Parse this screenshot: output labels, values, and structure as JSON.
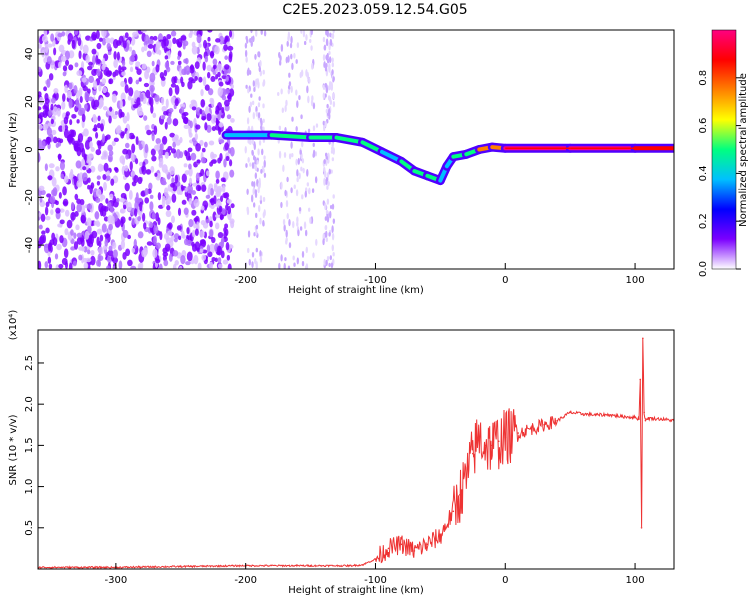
{
  "title": "C2E5.2023.059.12.54.G05",
  "chart_data": [
    {
      "type": "heatmap",
      "xlabel": "Height of straight line (km)",
      "ylabel": "Frequency (Hz)",
      "xlim": [
        -360,
        130
      ],
      "ylim": [
        -50,
        50
      ],
      "xticks": [
        -300,
        -200,
        -100,
        0,
        100
      ],
      "yticks": [
        -40,
        -20,
        0,
        20,
        40
      ],
      "colorbar": {
        "label": "Normalized spectral amplitude",
        "range": [
          0,
          1
        ],
        "ticks": [
          "0.0",
          "0.2",
          "0.4",
          "0.6",
          "0.8"
        ],
        "colors": [
          "#ffffff",
          "#7b00ff",
          "#0000ff",
          "#00c0ff",
          "#00ff80",
          "#ffff00",
          "#ff8000",
          "#ff0000",
          "#ff0080"
        ]
      },
      "ridge": {
        "x": [
          -215,
          -180,
          -150,
          -130,
          -110,
          -95,
          -80,
          -70,
          -60,
          -50,
          -45,
          -40,
          -30,
          -20,
          -10,
          0,
          50,
          100,
          130
        ],
        "y": [
          6,
          6,
          5,
          5,
          3,
          -1,
          -5,
          -9,
          -11,
          -13,
          -7,
          -3,
          -2,
          0,
          1,
          0.5,
          0.5,
          0.5,
          0.5
        ],
        "amplitude": [
          0.4,
          0.5,
          0.45,
          0.5,
          0.45,
          0.4,
          0.45,
          0.5,
          0.45,
          0.4,
          0.4,
          0.5,
          0.55,
          0.7,
          0.75,
          0.95,
          0.95,
          0.9,
          0.8
        ]
      },
      "noise_region": {
        "x_from": -360,
        "x_to": -210,
        "amplitude": 0.2
      },
      "noise_bands": [
        [
          -200,
          -185
        ],
        [
          -175,
          -145
        ],
        [
          -140,
          -132
        ]
      ]
    },
    {
      "type": "line",
      "xlabel": "Height of straight line (km)",
      "ylabel": "SNR (10 * v/v)",
      "multiplier": "(x10⁴)",
      "xlim": [
        -360,
        130
      ],
      "ylim": [
        0,
        2.9
      ],
      "xticks": [
        -300,
        -200,
        -100,
        0,
        100
      ],
      "yticks": [
        "0.5",
        "1.0",
        "1.5",
        "2.0",
        "2.5"
      ],
      "series": [
        {
          "color": "#ee3333",
          "x": [
            -360,
            -300,
            -250,
            -200,
            -150,
            -120,
            -110,
            -100,
            -90,
            -80,
            -70,
            -60,
            -50,
            -40,
            -35,
            -30,
            -25,
            -20,
            -15,
            -10,
            -5,
            0,
            10,
            20,
            30,
            40,
            50,
            60,
            70,
            80,
            90,
            100,
            103,
            104,
            105,
            106,
            107,
            108,
            110,
            120,
            130
          ],
          "y": [
            0.02,
            0.02,
            0.03,
            0.04,
            0.04,
            0.04,
            0.05,
            0.12,
            0.25,
            0.3,
            0.22,
            0.3,
            0.4,
            0.7,
            0.9,
            1.1,
            1.4,
            1.6,
            1.5,
            1.5,
            1.55,
            1.6,
            1.65,
            1.7,
            1.75,
            1.8,
            1.9,
            1.88,
            1.87,
            1.87,
            1.85,
            1.84,
            1.82,
            2.3,
            0.5,
            2.8,
            1.9,
            1.8,
            1.83,
            1.82,
            1.8
          ]
        }
      ]
    }
  ]
}
